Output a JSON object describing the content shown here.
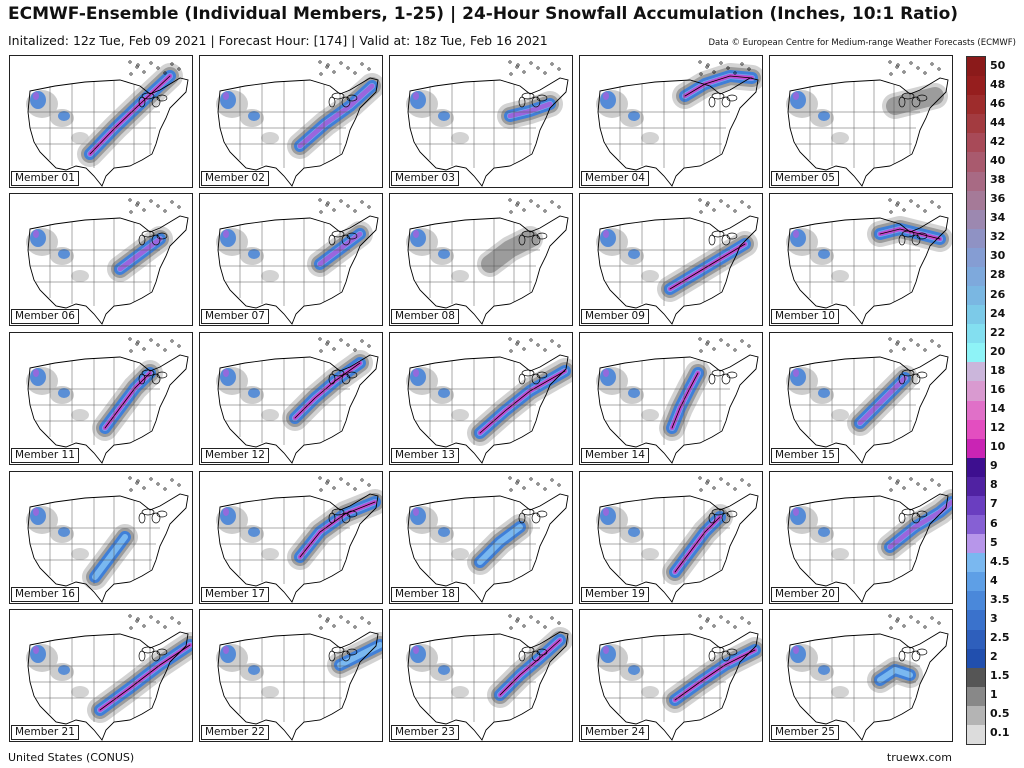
{
  "header": {
    "title": "ECMWF-Ensemble (Individual Members, 1-25) | 24-Hour Snowfall Accumulation (Inches, 10:1 Ratio)",
    "subtitle": "Initalized: 12z Tue, Feb 09 2021 | Forecast Hour: [174] | Valid at: 18z Tue, Feb 16 2021",
    "credit": "Data © European Centre for Medium-range Weather Forecasts (ECMWF)"
  },
  "members": [
    {
      "label": "Member 01",
      "band": [
        [
          80,
          98
        ],
        [
          105,
          72
        ],
        [
          130,
          48
        ],
        [
          160,
          20
        ]
      ],
      "intensity": 3
    },
    {
      "label": "Member 02",
      "band": [
        [
          100,
          90
        ],
        [
          125,
          68
        ],
        [
          150,
          50
        ],
        [
          172,
          30
        ]
      ],
      "intensity": 2
    },
    {
      "label": "Member 03",
      "band": [
        [
          120,
          60
        ],
        [
          140,
          55
        ],
        [
          160,
          48
        ]
      ],
      "intensity": 2
    },
    {
      "label": "Member 04",
      "band": [
        [
          105,
          40
        ],
        [
          125,
          28
        ],
        [
          150,
          20
        ],
        [
          172,
          22
        ]
      ],
      "intensity": 3
    },
    {
      "label": "Member 05",
      "band": [
        [
          125,
          50
        ],
        [
          145,
          45
        ],
        [
          165,
          40
        ]
      ],
      "intensity": 0
    },
    {
      "label": "Member 06",
      "band": [
        [
          110,
          75
        ],
        [
          130,
          60
        ],
        [
          150,
          45
        ]
      ],
      "intensity": 2
    },
    {
      "label": "Member 07",
      "band": [
        [
          120,
          70
        ],
        [
          140,
          55
        ],
        [
          160,
          40
        ]
      ],
      "intensity": 2
    },
    {
      "label": "Member 08",
      "band": [
        [
          100,
          70
        ],
        [
          120,
          55
        ],
        [
          140,
          45
        ]
      ],
      "intensity": 0
    },
    {
      "label": "Member 09",
      "band": [
        [
          90,
          95
        ],
        [
          115,
          80
        ],
        [
          140,
          65
        ],
        [
          165,
          50
        ]
      ],
      "intensity": 3
    },
    {
      "label": "Member 10",
      "band": [
        [
          110,
          40
        ],
        [
          130,
          35
        ],
        [
          150,
          40
        ],
        [
          170,
          45
        ]
      ],
      "intensity": 3
    },
    {
      "label": "Member 11",
      "band": [
        [
          95,
          95
        ],
        [
          110,
          75
        ],
        [
          125,
          55
        ],
        [
          140,
          40
        ]
      ],
      "intensity": 3
    },
    {
      "label": "Member 12",
      "band": [
        [
          95,
          85
        ],
        [
          115,
          65
        ],
        [
          135,
          48
        ],
        [
          160,
          30
        ]
      ],
      "intensity": 3
    },
    {
      "label": "Member 13",
      "band": [
        [
          90,
          100
        ],
        [
          115,
          78
        ],
        [
          140,
          58
        ],
        [
          175,
          38
        ]
      ],
      "intensity": 3
    },
    {
      "label": "Member 14",
      "band": [
        [
          92,
          95
        ],
        [
          100,
          75
        ],
        [
          110,
          55
        ],
        [
          118,
          40
        ]
      ],
      "intensity": 3
    },
    {
      "label": "Member 15",
      "band": [
        [
          90,
          90
        ],
        [
          105,
          75
        ],
        [
          120,
          60
        ],
        [
          135,
          45
        ]
      ],
      "intensity": 2
    },
    {
      "label": "Member 16",
      "band": [
        [
          85,
          105
        ],
        [
          100,
          85
        ],
        [
          115,
          65
        ]
      ],
      "intensity": 1
    },
    {
      "label": "Member 17",
      "band": [
        [
          100,
          85
        ],
        [
          120,
          60
        ],
        [
          145,
          42
        ],
        [
          175,
          30
        ]
      ],
      "intensity": 3
    },
    {
      "label": "Member 18",
      "band": [
        [
          90,
          90
        ],
        [
          110,
          70
        ],
        [
          130,
          55
        ]
      ],
      "intensity": 1
    },
    {
      "label": "Member 19",
      "band": [
        [
          95,
          100
        ],
        [
          110,
          80
        ],
        [
          125,
          60
        ],
        [
          140,
          45
        ]
      ],
      "intensity": 3
    },
    {
      "label": "Member 20",
      "band": [
        [
          120,
          75
        ],
        [
          145,
          55
        ],
        [
          170,
          40
        ],
        [
          182,
          30
        ]
      ],
      "intensity": 2
    },
    {
      "label": "Member 21",
      "band": [
        [
          90,
          100
        ],
        [
          120,
          78
        ],
        [
          150,
          55
        ],
        [
          180,
          35
        ]
      ],
      "intensity": 3
    },
    {
      "label": "Member 22",
      "band": [
        [
          140,
          55
        ],
        [
          160,
          45
        ],
        [
          180,
          35
        ]
      ],
      "intensity": 1
    },
    {
      "label": "Member 23",
      "band": [
        [
          110,
          85
        ],
        [
          130,
          65
        ],
        [
          150,
          48
        ],
        [
          170,
          30
        ]
      ],
      "intensity": 3
    },
    {
      "label": "Member 24",
      "band": [
        [
          95,
          90
        ],
        [
          120,
          72
        ],
        [
          145,
          55
        ],
        [
          175,
          40
        ]
      ],
      "intensity": 3
    },
    {
      "label": "Member 25",
      "band": [
        [
          110,
          70
        ],
        [
          125,
          60
        ],
        [
          140,
          65
        ]
      ],
      "intensity": 1
    }
  ],
  "legend": [
    {
      "value": "50",
      "color": "#8b1a1a"
    },
    {
      "value": "48",
      "color": "#961e1e"
    },
    {
      "value": "46",
      "color": "#9e2c2c"
    },
    {
      "value": "44",
      "color": "#a33b40"
    },
    {
      "value": "42",
      "color": "#a84a58"
    },
    {
      "value": "40",
      "color": "#a95a6e"
    },
    {
      "value": "38",
      "color": "#a86a84"
    },
    {
      "value": "36",
      "color": "#a57a98"
    },
    {
      "value": "34",
      "color": "#9c88b0"
    },
    {
      "value": "32",
      "color": "#8f92c4"
    },
    {
      "value": "30",
      "color": "#859dd3"
    },
    {
      "value": "28",
      "color": "#7ea9dc"
    },
    {
      "value": "26",
      "color": "#7ab7e2"
    },
    {
      "value": "24",
      "color": "#7ccae8"
    },
    {
      "value": "22",
      "color": "#83dff0"
    },
    {
      "value": "20",
      "color": "#8ef3f7"
    },
    {
      "value": "18",
      "color": "#cbb6db"
    },
    {
      "value": "16",
      "color": "#d99ad0"
    },
    {
      "value": "14",
      "color": "#e070c8"
    },
    {
      "value": "12",
      "color": "#e34ec0"
    },
    {
      "value": "10",
      "color": "#c924b4"
    },
    {
      "value": "9",
      "color": "#3d0f8f"
    },
    {
      "value": "8",
      "color": "#5022a2"
    },
    {
      "value": "7",
      "color": "#6a3ec0"
    },
    {
      "value": "6",
      "color": "#8660d4"
    },
    {
      "value": "5",
      "color": "#b796ea"
    },
    {
      "value": "4.5",
      "color": "#7ab8f0"
    },
    {
      "value": "4",
      "color": "#5e9fe6"
    },
    {
      "value": "3.5",
      "color": "#4a88da"
    },
    {
      "value": "3",
      "color": "#3a72cc"
    },
    {
      "value": "2.5",
      "color": "#2e5fbc"
    },
    {
      "value": "2",
      "color": "#214fae"
    },
    {
      "value": "1.5",
      "color": "#555555"
    },
    {
      "value": "1",
      "color": "#888888"
    },
    {
      "value": "0.5",
      "color": "#b4b4b4"
    },
    {
      "value": "0.1",
      "color": "#dcdcdc"
    }
  ],
  "footer": {
    "region": "United States (CONUS)",
    "site": "truewx.com"
  },
  "colors": {
    "snow_light": "#c8c8c8",
    "snow_mid": "#8a8a8a",
    "snow_blue": "#3f7fd8",
    "snow_light_blue": "#7ab8f0",
    "snow_purple": "#9a66dd",
    "snow_magenta": "#cc44cc",
    "outline": "#000000"
  }
}
